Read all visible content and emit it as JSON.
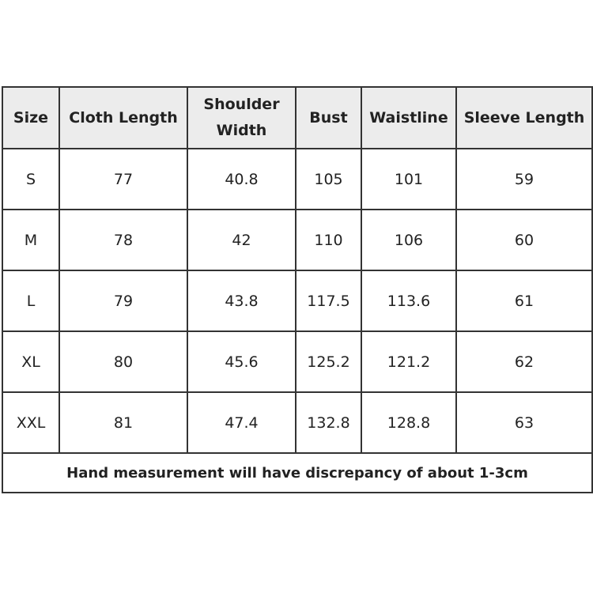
{
  "headers": [
    "Size",
    "Cloth Length",
    "Shoulder Width",
    "Bust",
    "Waistline",
    "Sleeve Length"
  ],
  "rows": [
    [
      "S",
      "77",
      "40.8",
      "105",
      "101",
      "59"
    ],
    [
      "M",
      "78",
      "42",
      "110",
      "106",
      "60"
    ],
    [
      "L",
      "79",
      "43.8",
      "117.5",
      "113.6",
      "61"
    ],
    [
      "XL",
      "80",
      "45.6",
      "125.2",
      "121.2",
      "62"
    ],
    [
      "XXL",
      "81",
      "47.4",
      "132.8",
      "128.8",
      "63"
    ]
  ],
  "note": "Hand measurement will have discrepancy of about 1-3cm",
  "colors": {
    "header_bg": "#ececec",
    "border": "#333333"
  }
}
